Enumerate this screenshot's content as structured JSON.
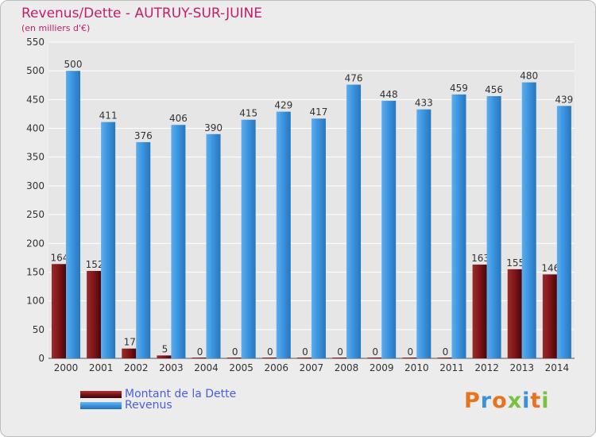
{
  "header": {
    "title": "Revenus/Dette - AUTRUY-SUR-JUINE",
    "subtitle": "(en milliers d'€)"
  },
  "legend": {
    "dette_label": "Montant de la Dette",
    "revenus_label": "Revenus"
  },
  "logo": {
    "text": "Proxiti"
  },
  "colors": {
    "dette": "#7a1417",
    "revenus": "#3a92dc",
    "title": "#c21e6a",
    "legend_text": "#4a5fe0",
    "grid": "#ffffff",
    "background": "#ececec"
  },
  "chart_data": {
    "type": "bar",
    "title": "Revenus/Dette - AUTRUY-SUR-JUINE",
    "ylabel": "(en milliers d'€)",
    "xlabel": "",
    "categories": [
      "2000",
      "2001",
      "2002",
      "2003",
      "2004",
      "2005",
      "2006",
      "2007",
      "2008",
      "2009",
      "2010",
      "2011",
      "2012",
      "2013",
      "2014"
    ],
    "series": [
      {
        "name": "Montant de la Dette",
        "values": [
          164,
          152,
          17,
          5,
          0,
          0,
          0,
          0,
          0,
          0,
          0,
          0,
          163,
          155,
          146
        ]
      },
      {
        "name": "Revenus",
        "values": [
          500,
          411,
          376,
          406,
          390,
          415,
          429,
          417,
          476,
          448,
          433,
          459,
          456,
          480,
          439
        ]
      }
    ],
    "ylim": [
      0,
      550
    ],
    "yticks": [
      0,
      50,
      100,
      150,
      200,
      250,
      300,
      350,
      400,
      450,
      500,
      550
    ],
    "grid": true,
    "legend_position": "bottom-left"
  }
}
